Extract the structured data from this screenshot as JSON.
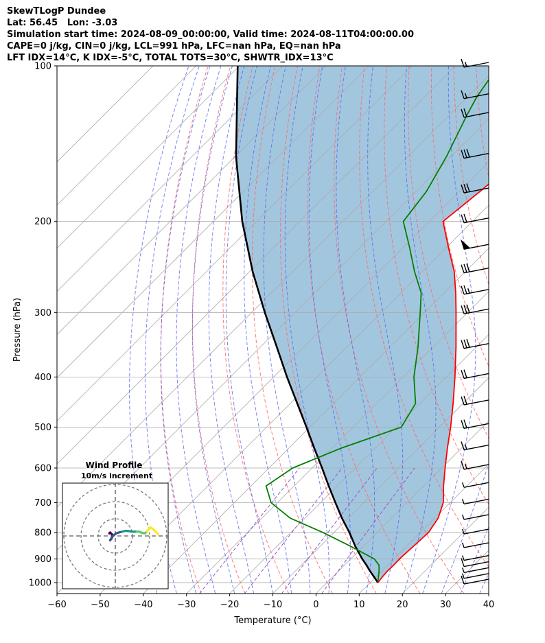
{
  "header": {
    "lines": [
      "SkewTLogP Dundee",
      "Lat: 56.45   Lon: -3.03",
      "Simulation start time: 2024-08-09_00:00:00, Valid time: 2024-08-11T04:00:00.00",
      "CAPE=0 j/kg, CIN=0 j/kg, LCL=991 hPa, LFC=nan hPa, EQ=nan hPa",
      "LFT IDX=14°C, K IDX=-5°C, TOTAL TOTS=30°C, SHWTR_IDX=13°C"
    ]
  },
  "chart_data": [
    {
      "type": "skewt-logp",
      "xlabel": "Temperature (°C)",
      "ylabel": "Pressure (hPa)",
      "xlim": [
        -60,
        40
      ],
      "ylim": [
        1050,
        100
      ],
      "y_scale": "log",
      "x_ticks": [
        -60,
        -50,
        -40,
        -30,
        -20,
        -10,
        0,
        10,
        20,
        30,
        40
      ],
      "x_tick_labels": [
        "−60",
        "−50",
        "−40",
        "−30",
        "−20",
        "−10",
        "0",
        "10",
        "20",
        "30",
        "40"
      ],
      "y_ticks": [
        1000,
        900,
        800,
        700,
        600,
        500,
        400,
        300,
        200,
        100
      ],
      "y_tick_labels": [
        "1000",
        "900",
        "800",
        "700",
        "600",
        "500",
        "400",
        "300",
        "200",
        "100"
      ],
      "grid": true,
      "colors": {
        "temperature": "#ff0000",
        "dewpoint": "#008000",
        "parcel": "#000000",
        "cape_fill": "#a3c6df",
        "dry_adiabats": "#ff6666",
        "moist_adiabats": "#5566ee",
        "mixing_ratio": "#9955cc",
        "isotherms": "#aaaaaa"
      },
      "series": [
        {
          "role": "temperature",
          "pressure": [
            1000,
            975,
            950,
            925,
            900,
            850,
            800,
            750,
            700,
            650,
            600,
            550,
            500,
            450,
            400,
            350,
            300,
            275,
            250,
            225,
            200,
            175,
            150,
            125,
            115,
            100
          ],
          "values": [
            11.8,
            11.5,
            11.3,
            11.4,
            11.3,
            11.6,
            11.9,
            10.8,
            8.4,
            4.6,
            0.8,
            -3.2,
            -7.4,
            -12.3,
            -18.0,
            -24.7,
            -32.7,
            -37.3,
            -42.6,
            -49.4,
            -56.8,
            -55.2,
            -53.5,
            -51.2,
            -49.2,
            -48.5
          ]
        },
        {
          "role": "dewpoint",
          "pressure": [
            1000,
            975,
            950,
            925,
            900,
            850,
            800,
            750,
            700,
            650,
            600,
            550,
            500,
            450,
            400,
            350,
            300,
            275,
            250,
            225,
            200,
            175,
            150,
            125,
            115,
            100
          ],
          "values": [
            11.8,
            10.6,
            9.4,
            8.0,
            5.5,
            -3.0,
            -12.5,
            -23.5,
            -31.5,
            -36.5,
            -34.5,
            -28.0,
            -18.8,
            -21.0,
            -27.5,
            -33.5,
            -41.0,
            -45.3,
            -51.8,
            -58.4,
            -66.0,
            -67.6,
            -71.0,
            -75.8,
            -77.8,
            -80.0
          ]
        },
        {
          "role": "parcel",
          "pressure": [
            1000,
            975,
            950,
            925,
            900,
            850,
            800,
            750,
            700,
            650,
            600,
            550,
            500,
            450,
            400,
            350,
            300,
            250,
            200,
            150,
            100
          ],
          "values": [
            11.8,
            9.6,
            7.3,
            5.1,
            2.7,
            -1.9,
            -6.4,
            -11.5,
            -16.6,
            -22.0,
            -27.7,
            -34.0,
            -40.8,
            -48.4,
            -56.9,
            -66.2,
            -77.0,
            -89.3,
            -103.3,
            -119.7,
            -140.4
          ]
        }
      ],
      "wind_barbs": {
        "pressure": [
          1000,
          975,
          950,
          925,
          900,
          850,
          800,
          750,
          700,
          650,
          600,
          550,
          500,
          450,
          400,
          350,
          300,
          275,
          250,
          225,
          200,
          175,
          150,
          125,
          115,
          100
        ],
        "barbs": [
          [
            2
          ],
          [
            1
          ],
          [
            1
          ],
          [
            2
          ],
          [
            1
          ],
          [
            1
          ],
          [
            1
          ],
          [
            1
          ],
          [
            1
          ],
          [
            1
          ],
          [
            2,
            1
          ],
          [
            2,
            1
          ],
          [
            2,
            2
          ],
          [
            2,
            2
          ],
          [
            2,
            2
          ],
          [
            2,
            2,
            2
          ],
          [
            2,
            2,
            2
          ],
          [
            2,
            2,
            1
          ],
          [
            2,
            2,
            2
          ],
          [
            "flag"
          ],
          [
            2,
            2
          ],
          [
            2,
            2,
            2
          ],
          [
            2,
            2,
            2
          ],
          [
            2,
            2
          ],
          [
            2,
            1
          ],
          [
            2,
            1
          ]
        ]
      }
    },
    {
      "type": "hodograph",
      "title": "Wind Profile",
      "subtitle": "10m/s increment",
      "rings": [
        10,
        20,
        30
      ],
      "grid": true,
      "colormap": [
        "#440154",
        "#3b528b",
        "#21918c",
        "#5ec962",
        "#fde725"
      ],
      "u": [
        -3.5,
        -3.0,
        -2.0,
        -1.5,
        -2.2,
        -3.0,
        -1.5,
        0.5,
        2.0,
        4.0,
        6.0,
        8.0,
        10.0,
        12.5,
        14.0,
        15.5,
        17.0,
        18.5,
        19.5,
        20.5,
        22.0,
        23.5,
        25.0
      ],
      "v": [
        1.5,
        2.0,
        1.0,
        0.0,
        -1.5,
        -2.5,
        0.0,
        1.5,
        2.0,
        2.5,
        3.0,
        2.8,
        2.5,
        2.5,
        2.5,
        1.8,
        1.5,
        2.5,
        4.0,
        5.0,
        4.0,
        2.5,
        1.0
      ]
    }
  ]
}
